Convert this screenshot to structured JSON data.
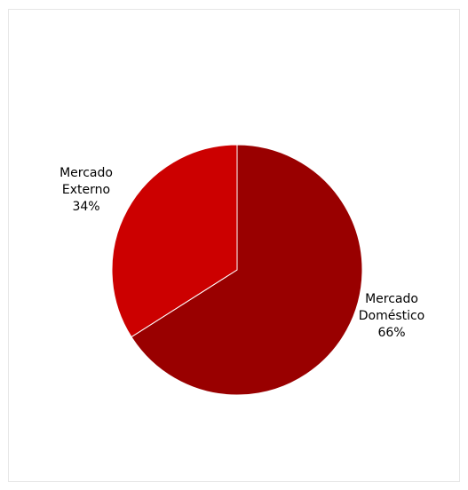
{
  "chart_data": {
    "type": "pie",
    "title": "",
    "slices": [
      {
        "label_lines": [
          "Mercado",
          "Doméstico",
          "66%"
        ],
        "value": 66,
        "color": "#990000"
      },
      {
        "label_lines": [
          "Mercado",
          "Externo",
          "34%"
        ],
        "value": 34,
        "color": "#cc0000"
      }
    ],
    "start_angle_deg": 0,
    "direction": "clockwise",
    "legend": "none"
  }
}
